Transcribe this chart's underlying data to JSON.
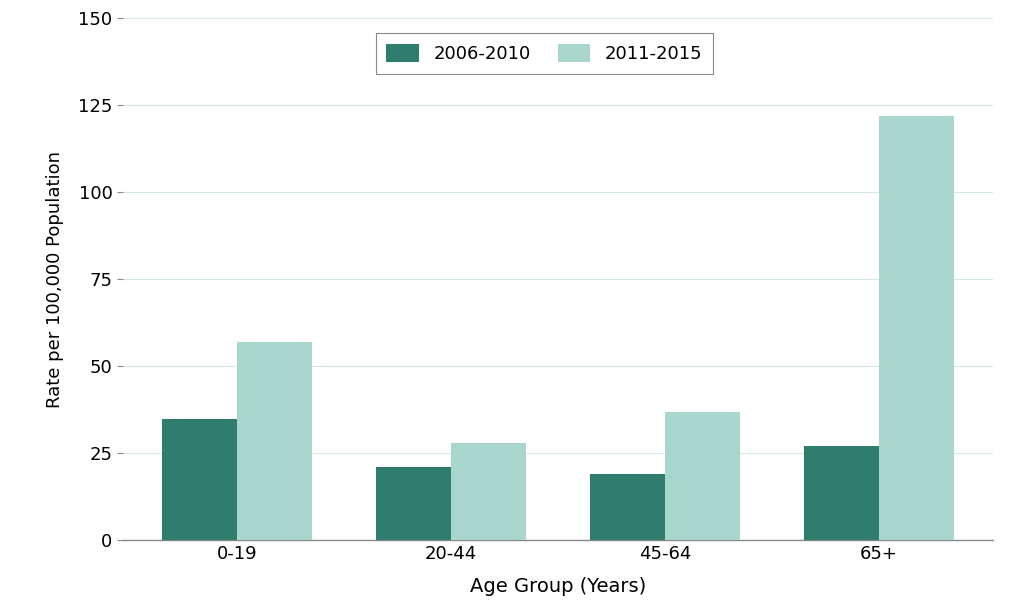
{
  "categories": [
    "0-19",
    "20-44",
    "45-64",
    "65+"
  ],
  "values_2006_2010": [
    35,
    21,
    19,
    27
  ],
  "values_2011_2015": [
    57,
    28,
    37,
    122
  ],
  "color_2006_2010": "#2e7d6e",
  "color_2011_2015": "#a8d5cc",
  "ylabel": "Rate per 100,000 Population",
  "xlabel": "Age Group (Years)",
  "ylim": [
    0,
    150
  ],
  "yticks": [
    0,
    25,
    50,
    75,
    100,
    125,
    150
  ],
  "legend_labels": [
    "2006-2010",
    "2011-2015"
  ],
  "bar_width": 0.35,
  "background_color": "#ffffff",
  "grid_color": "#d4e8e4"
}
